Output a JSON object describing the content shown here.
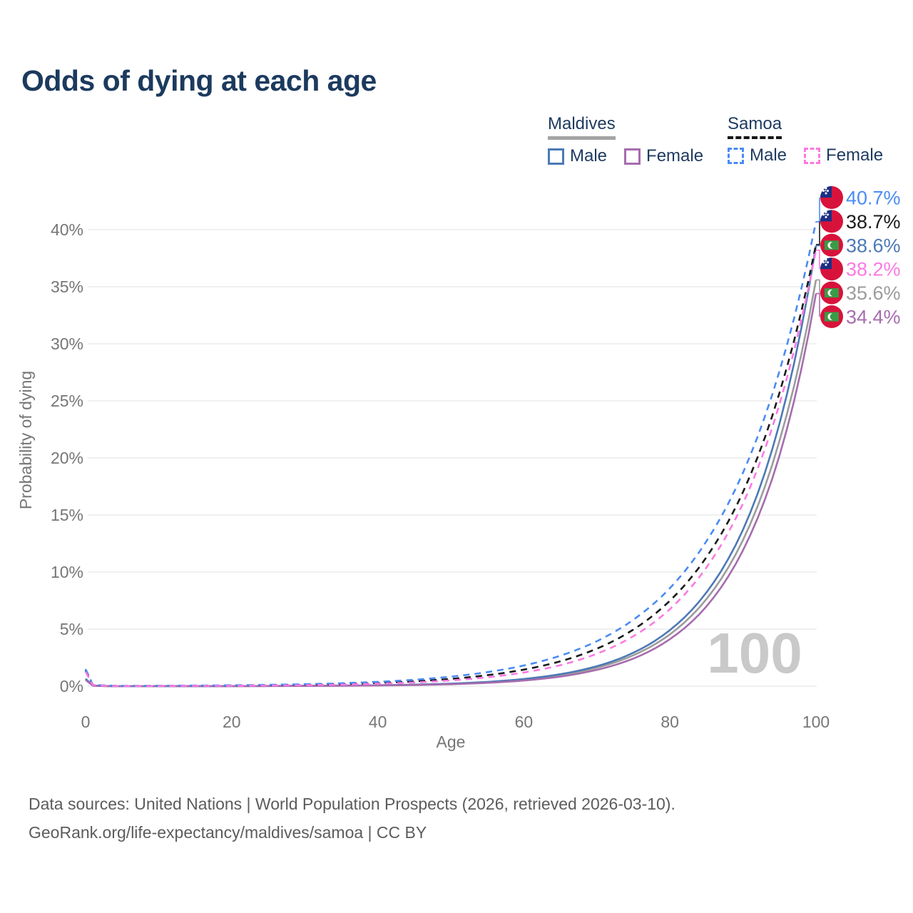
{
  "title": "Odds of dying at each age",
  "legend": {
    "groups": [
      {
        "name": "Maldives",
        "line_style": "solid",
        "items": [
          {
            "label": "Male",
            "color": "#4c79b5"
          },
          {
            "label": "Female",
            "color": "#a76cae"
          }
        ]
      },
      {
        "name": "Samoa",
        "line_style": "dashed",
        "items": [
          {
            "label": "Male",
            "color": "#4b8bf3"
          },
          {
            "label": "Female",
            "color": "#fb79e3"
          }
        ]
      }
    ]
  },
  "watermark_age": "100",
  "footer": {
    "line1": "Data sources: United Nations | World Population Prospects (2026, retrieved 2026-03-10).",
    "line2": "GeoRank.org/life-expectancy/maldives/samoa | CC BY"
  },
  "colors": {
    "title_text": "#1c3a5e",
    "axis_text": "#767676",
    "gridline": "#e8e8e8",
    "watermark": "#c9c9c9"
  },
  "chart_data": {
    "type": "line",
    "title": "Odds of dying at each age",
    "xlabel": "Age",
    "ylabel": "Probability of dying",
    "x_ticks": [
      0,
      20,
      40,
      60,
      80,
      100
    ],
    "y_ticks": [
      0,
      5,
      10,
      15,
      20,
      25,
      30,
      35,
      40
    ],
    "y_tick_suffix": "%",
    "xlim": [
      0,
      100
    ],
    "ylim": [
      0,
      43
    ],
    "grid": "horizontal-only",
    "legend_position": "top-right",
    "ages": [
      0,
      1,
      5,
      10,
      15,
      20,
      25,
      30,
      35,
      40,
      45,
      50,
      55,
      60,
      65,
      70,
      75,
      80,
      85,
      90,
      95,
      100
    ],
    "series": [
      {
        "name": "Maldives (both sexes)",
        "country": "maldives",
        "sex": "all",
        "color": "#9c9c9c",
        "dashed": false,
        "end_label": "35.6%",
        "values": [
          0.6,
          0.045,
          0.0019,
          0.0032,
          0.0054,
          0.009,
          0.015,
          0.026,
          0.043,
          0.072,
          0.121,
          0.203,
          0.34,
          0.57,
          0.96,
          1.61,
          2.71,
          4.54,
          7.63,
          12.8,
          21.5,
          35.6
        ]
      },
      {
        "name": "Maldives Male",
        "country": "maldives",
        "sex": "male",
        "color": "#4c79b5",
        "dashed": false,
        "end_label": "38.6%",
        "values": [
          0.65,
          0.05,
          0.0022,
          0.0037,
          0.0061,
          0.01,
          0.017,
          0.029,
          0.048,
          0.08,
          0.134,
          0.224,
          0.375,
          0.63,
          1.05,
          1.75,
          2.93,
          4.91,
          8.21,
          13.7,
          23.0,
          38.6
        ]
      },
      {
        "name": "Maldives Female",
        "country": "maldives",
        "sex": "female",
        "color": "#a76cae",
        "dashed": false,
        "end_label": "34.4%",
        "values": [
          0.55,
          0.04,
          0.0014,
          0.0025,
          0.0042,
          0.007,
          0.012,
          0.021,
          0.035,
          0.059,
          0.101,
          0.171,
          0.291,
          0.494,
          0.839,
          1.43,
          2.42,
          4.12,
          6.99,
          11.9,
          20.2,
          34.4
        ]
      },
      {
        "name": "Samoa (both sexes)",
        "country": "samoa",
        "sex": "all",
        "color": "#1b1b1b",
        "dashed": true,
        "end_label": "38.7%",
        "values": [
          1.4,
          0.11,
          0.016,
          0.024,
          0.036,
          0.054,
          0.082,
          0.123,
          0.185,
          0.28,
          0.42,
          0.64,
          0.96,
          1.45,
          2.18,
          3.29,
          4.96,
          7.49,
          11.3,
          17.0,
          25.7,
          38.7
        ]
      },
      {
        "name": "Samoa Male",
        "country": "samoa",
        "sex": "male",
        "color": "#4b8bf3",
        "dashed": true,
        "end_label": "40.7%",
        "values": [
          1.5,
          0.12,
          0.025,
          0.037,
          0.055,
          0.081,
          0.119,
          0.175,
          0.259,
          0.382,
          0.563,
          0.832,
          1.23,
          1.81,
          2.67,
          3.94,
          5.82,
          8.59,
          12.7,
          18.7,
          27.6,
          40.7
        ]
      },
      {
        "name": "Samoa Female",
        "country": "samoa",
        "sex": "female",
        "color": "#fb79e3",
        "dashed": true,
        "end_label": "38.2%",
        "values": [
          1.25,
          0.1,
          0.01,
          0.016,
          0.024,
          0.038,
          0.058,
          0.089,
          0.138,
          0.212,
          0.327,
          0.504,
          0.776,
          1.2,
          1.84,
          2.84,
          4.38,
          6.75,
          10.4,
          16.0,
          24.7,
          38.2
        ]
      }
    ]
  }
}
